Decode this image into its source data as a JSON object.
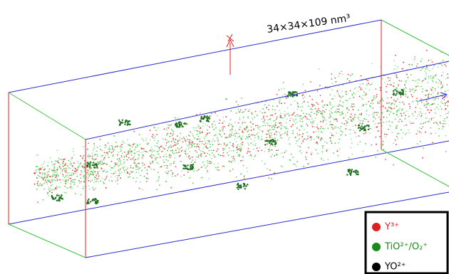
{
  "dimension_label": "34×34×109 nm³",
  "legend": {
    "items": [
      "Y³⁺",
      "TiO²⁺/O₂⁺",
      "YO²⁺"
    ]
  }
}
